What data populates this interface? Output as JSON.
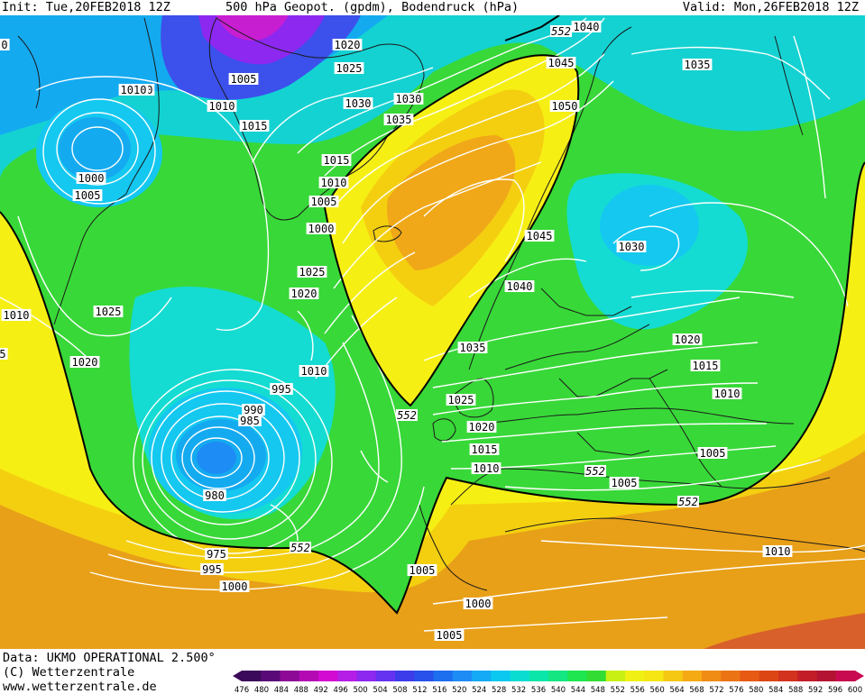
{
  "header": {
    "init": "Init: Tue,20FEB2018 12Z",
    "title": "500 hPa Geopot. (gpdm), Bodendruck (hPa)",
    "valid": "Valid: Mon,26FEB2018 12Z"
  },
  "footer": {
    "source": "Data: UKMO OPERATIONAL 2.500°",
    "copyright": "(C) Wetterzentrale",
    "url": "www.wetterzentrale.de"
  },
  "pressure_labels": [
    "1020",
    "1025",
    "1005",
    "1010",
    "1015",
    "1030",
    "1030",
    "1035",
    "1040",
    "1045",
    "1050",
    "1035",
    "1010",
    "1000",
    "1005",
    "1025",
    "1020",
    "1015",
    "1010",
    "1005",
    "1000",
    "1025",
    "1020",
    "1010",
    "995",
    "990",
    "985",
    "980",
    "975",
    "995",
    "1000",
    "1005",
    "1000",
    "1005",
    "1010",
    "1045",
    "1040",
    "1030",
    "1035",
    "1025",
    "1020",
    "1015",
    "1010",
    "1020",
    "1015",
    "1010",
    "1005",
    "1005",
    "1010",
    "0",
    "1010",
    "5"
  ],
  "geopot_labels": [
    "552",
    "552",
    "552",
    "552",
    "552"
  ],
  "colorbar": {
    "ticks": [
      "476",
      "480",
      "484",
      "488",
      "492",
      "496",
      "500",
      "504",
      "508",
      "512",
      "516",
      "520",
      "524",
      "528",
      "532",
      "536",
      "540",
      "544",
      "548",
      "552",
      "556",
      "560",
      "564",
      "568",
      "572",
      "576",
      "580",
      "584",
      "588",
      "592",
      "596",
      "600"
    ],
    "colors": [
      "#3c0a5a",
      "#5a0a78",
      "#8c0a96",
      "#b40ab4",
      "#d20ad2",
      "#b41ee6",
      "#8c28f0",
      "#6432f0",
      "#3c3ceb",
      "#2850eb",
      "#1e6ef0",
      "#1e8cf5",
      "#14aaf5",
      "#0ac8f0",
      "#0adcd2",
      "#0ae6aa",
      "#14e682",
      "#1ee650",
      "#32dc32",
      "#c8f014",
      "#f0f014",
      "#f5e614",
      "#f5c814",
      "#f5aa14",
      "#f08c14",
      "#eb7314",
      "#e65a14",
      "#dc4614",
      "#d2321e",
      "#c31e28",
      "#b41432",
      "#c80a50"
    ]
  },
  "colors": {
    "contour": "#ffffff",
    "geopot_552": "#000000",
    "coastline": "#1a1a1a",
    "label_bg": "#ffffff"
  }
}
